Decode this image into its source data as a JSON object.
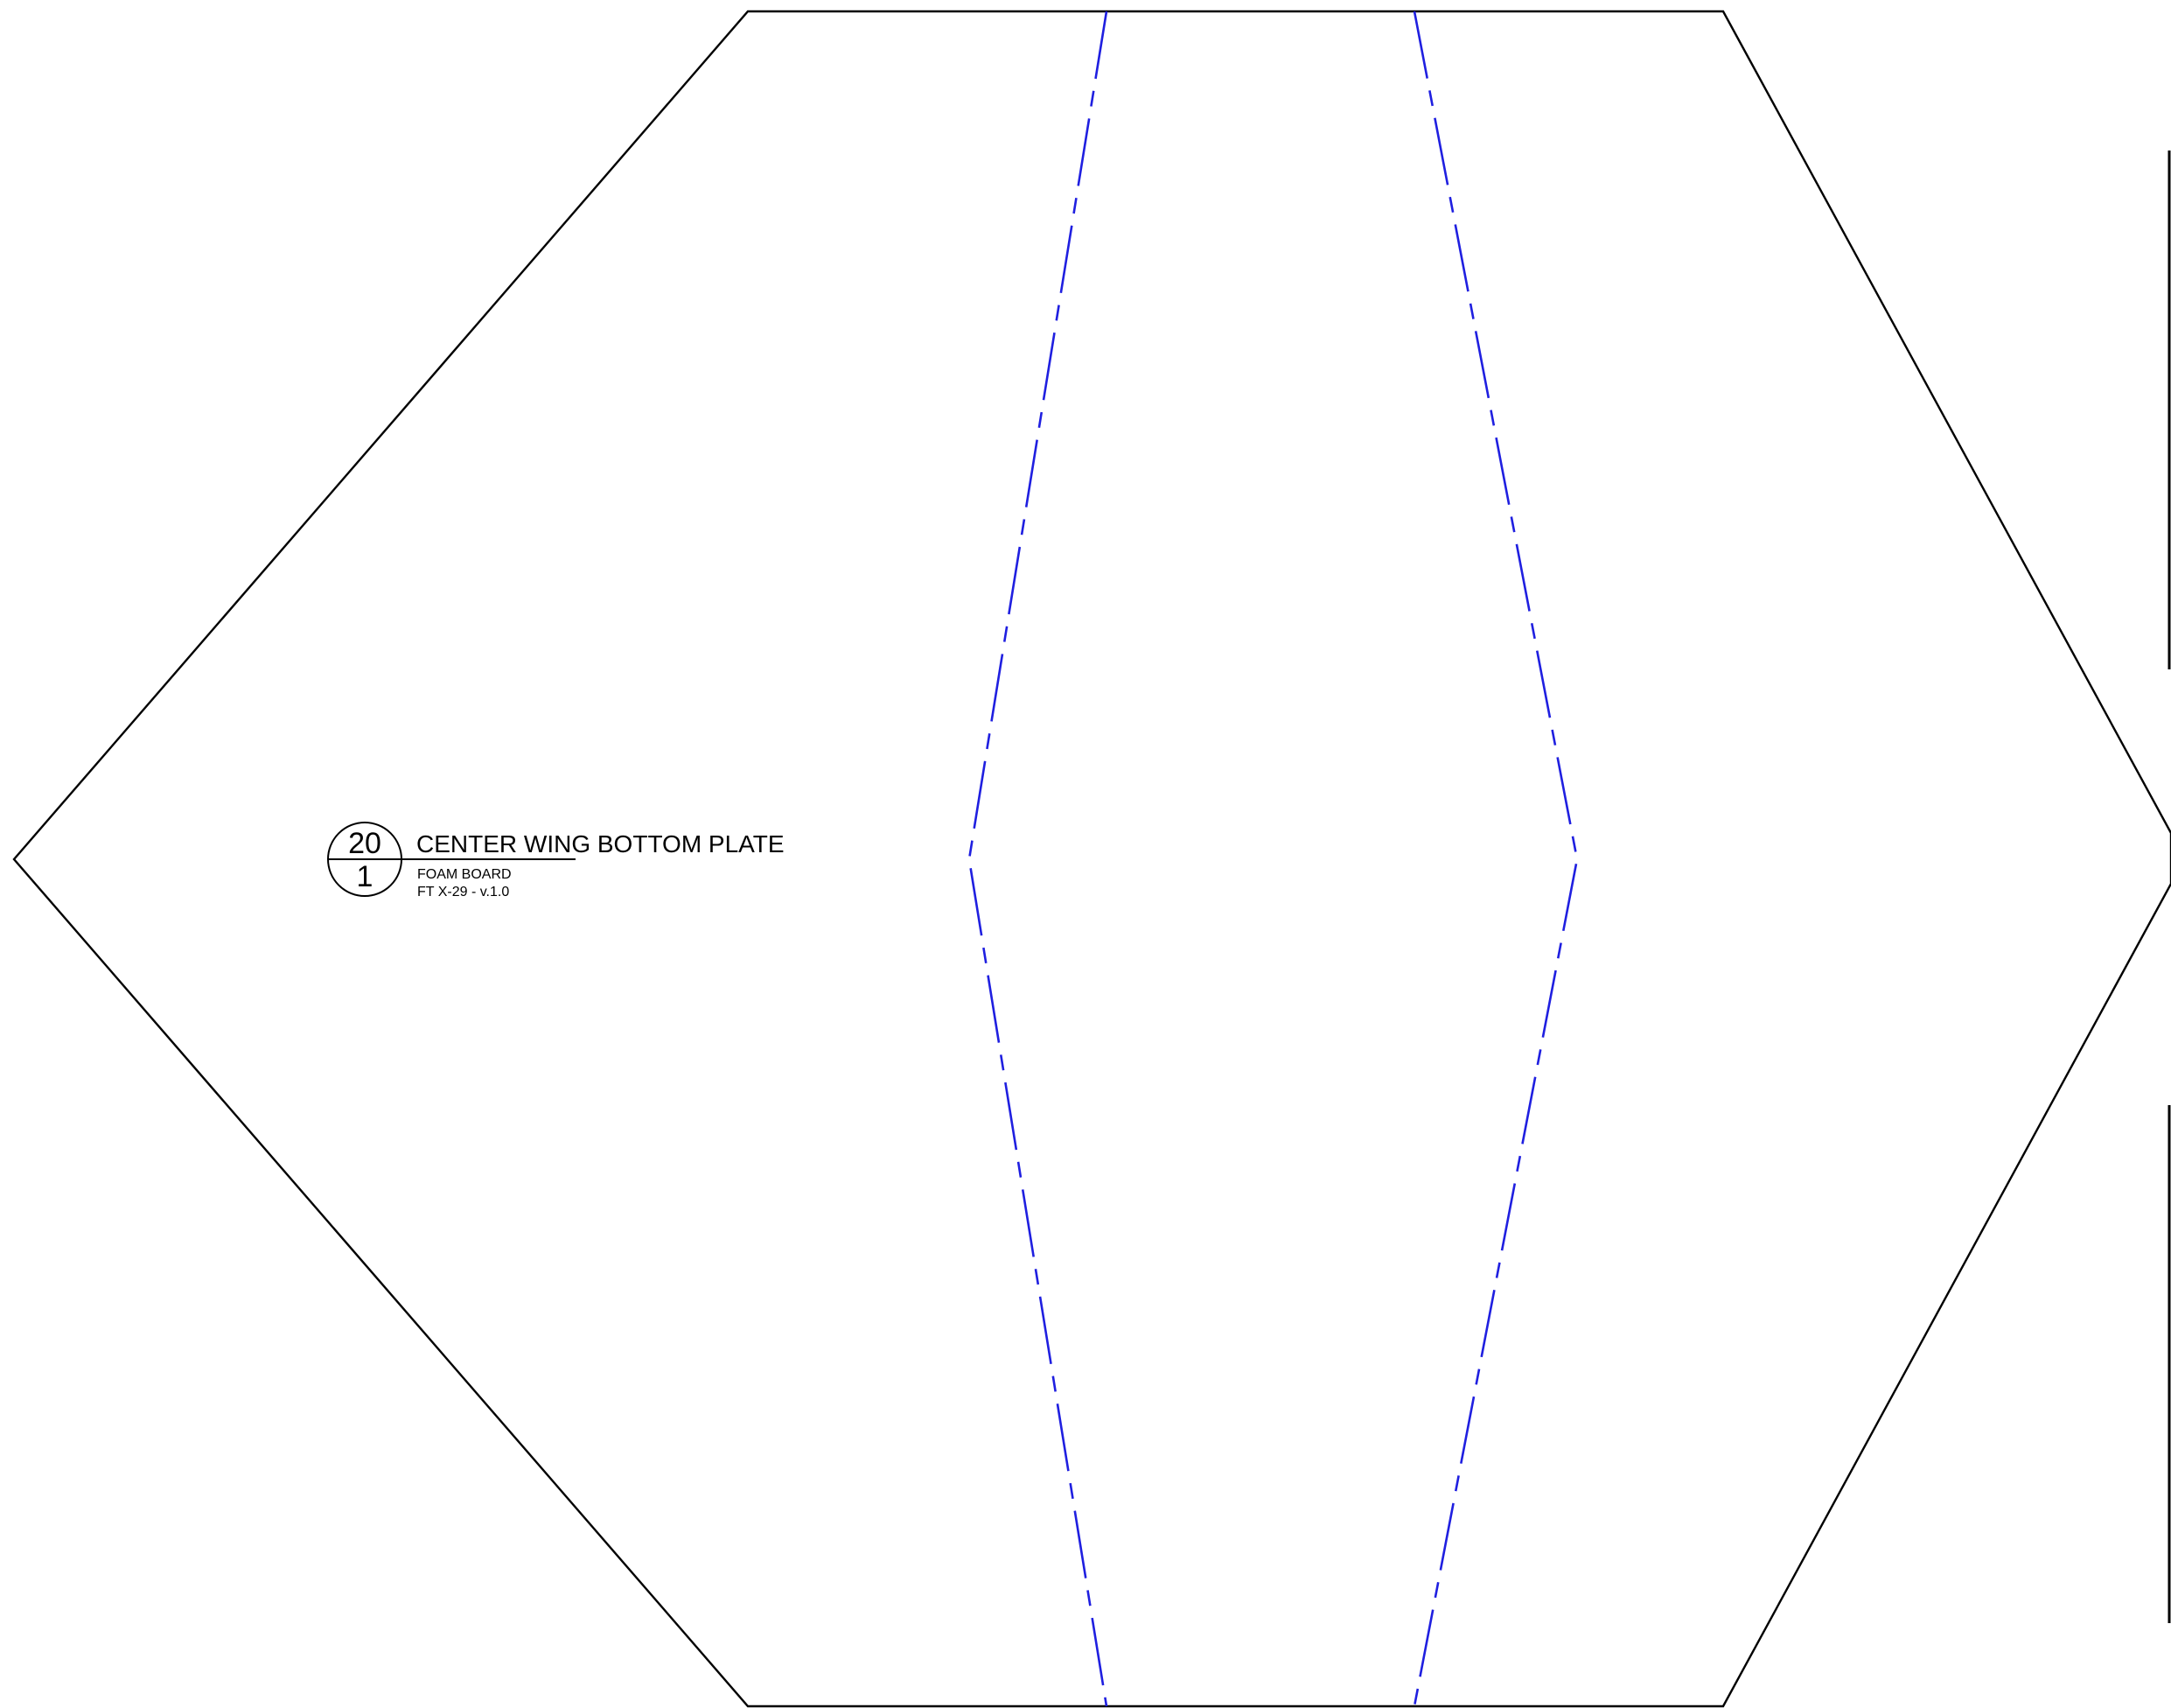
{
  "colors": {
    "outline": "#000000",
    "fold_line": "#1f1fe0",
    "background": "#ffffff"
  },
  "part_label": {
    "sheet_number": "20",
    "scale": "1",
    "title": "CENTER WING BOTTOM PLATE",
    "material": "FOAM BOARD",
    "model_version": "FT X-29 - v.1.0"
  }
}
